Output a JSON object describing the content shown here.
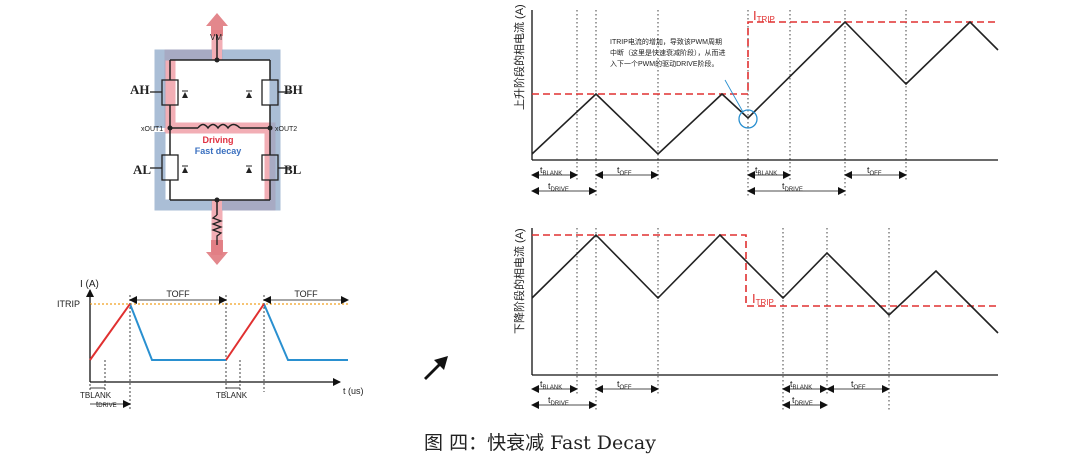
{
  "colors": {
    "driving": "#e05a5a",
    "decay": "#4f7eb8",
    "trip": "#e03030",
    "orange": "#f0a020",
    "axis": "#111111"
  },
  "bridge": {
    "vm": "VM",
    "ah": "AH",
    "bh": "BH",
    "al": "AL",
    "bl": "BL",
    "xout1": "xOUT1",
    "xout2": "xOUT2",
    "driving": "Driving",
    "fast_decay": "Fast decay"
  },
  "small_chart": {
    "y_label": "I (A)",
    "itrip": "ITRIP",
    "toff1": "TOFF",
    "toff2": "TOFF",
    "x_label": "t (us)",
    "tblank1": "TBLANK",
    "tblank2": "TBLANK",
    "tdrive_t": "t",
    "tdrive_sub": "DRIVE"
  },
  "top_chart": {
    "ylabel": "上升阶段的相电流 (A)",
    "itrip_i": "I",
    "itrip_sub": "TRIP",
    "annotation": [
      "ITRIP电流的增加，导致该PWM周期",
      "中断（这里是快速衰减阶段），从而进",
      "入下一个PWM的驱动DRIVE阶段。"
    ],
    "tblank_t": "t",
    "tblank_sub": "BLANK",
    "toff_t": "t",
    "toff_sub": "OFF",
    "tdrive_t": "t",
    "tdrive_sub": "DRIVE"
  },
  "bottom_chart": {
    "ylabel": "下降阶段的相电流 (A)",
    "itrip_i": "I",
    "itrip_sub": "TRIP",
    "tblank_t": "t",
    "tblank_sub": "BLANK",
    "toff_t": "t",
    "toff_sub": "OFF",
    "tdrive_t": "t",
    "tdrive_sub": "DRIVE"
  },
  "caption": "图 四：快衰减 Fast Decay"
}
